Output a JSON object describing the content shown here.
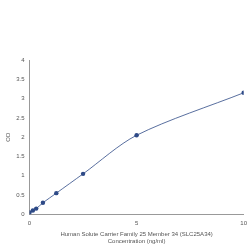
{
  "chart_data": {
    "type": "line",
    "x_label": [
      "Human Solute Carrier Family 25 Member 34 (SLC25A34)",
      "Concentration (ng/ml)"
    ],
    "y_label": "OD",
    "x": [
      0,
      0.156,
      0.312,
      0.625,
      1.25,
      2.5,
      5,
      10
    ],
    "values": [
      0.05,
      0.1,
      0.15,
      0.3,
      0.55,
      1.05,
      2.05,
      3.15
    ],
    "color": "#2e4a87",
    "marker": "circle",
    "xlim": [
      0,
      10
    ],
    "xticks": [
      0,
      5,
      10
    ],
    "ylim": [
      0,
      4
    ],
    "yticks": [
      0,
      0.5,
      1,
      1.5,
      2,
      2.5,
      3,
      3.5,
      4
    ],
    "grid": false
  }
}
